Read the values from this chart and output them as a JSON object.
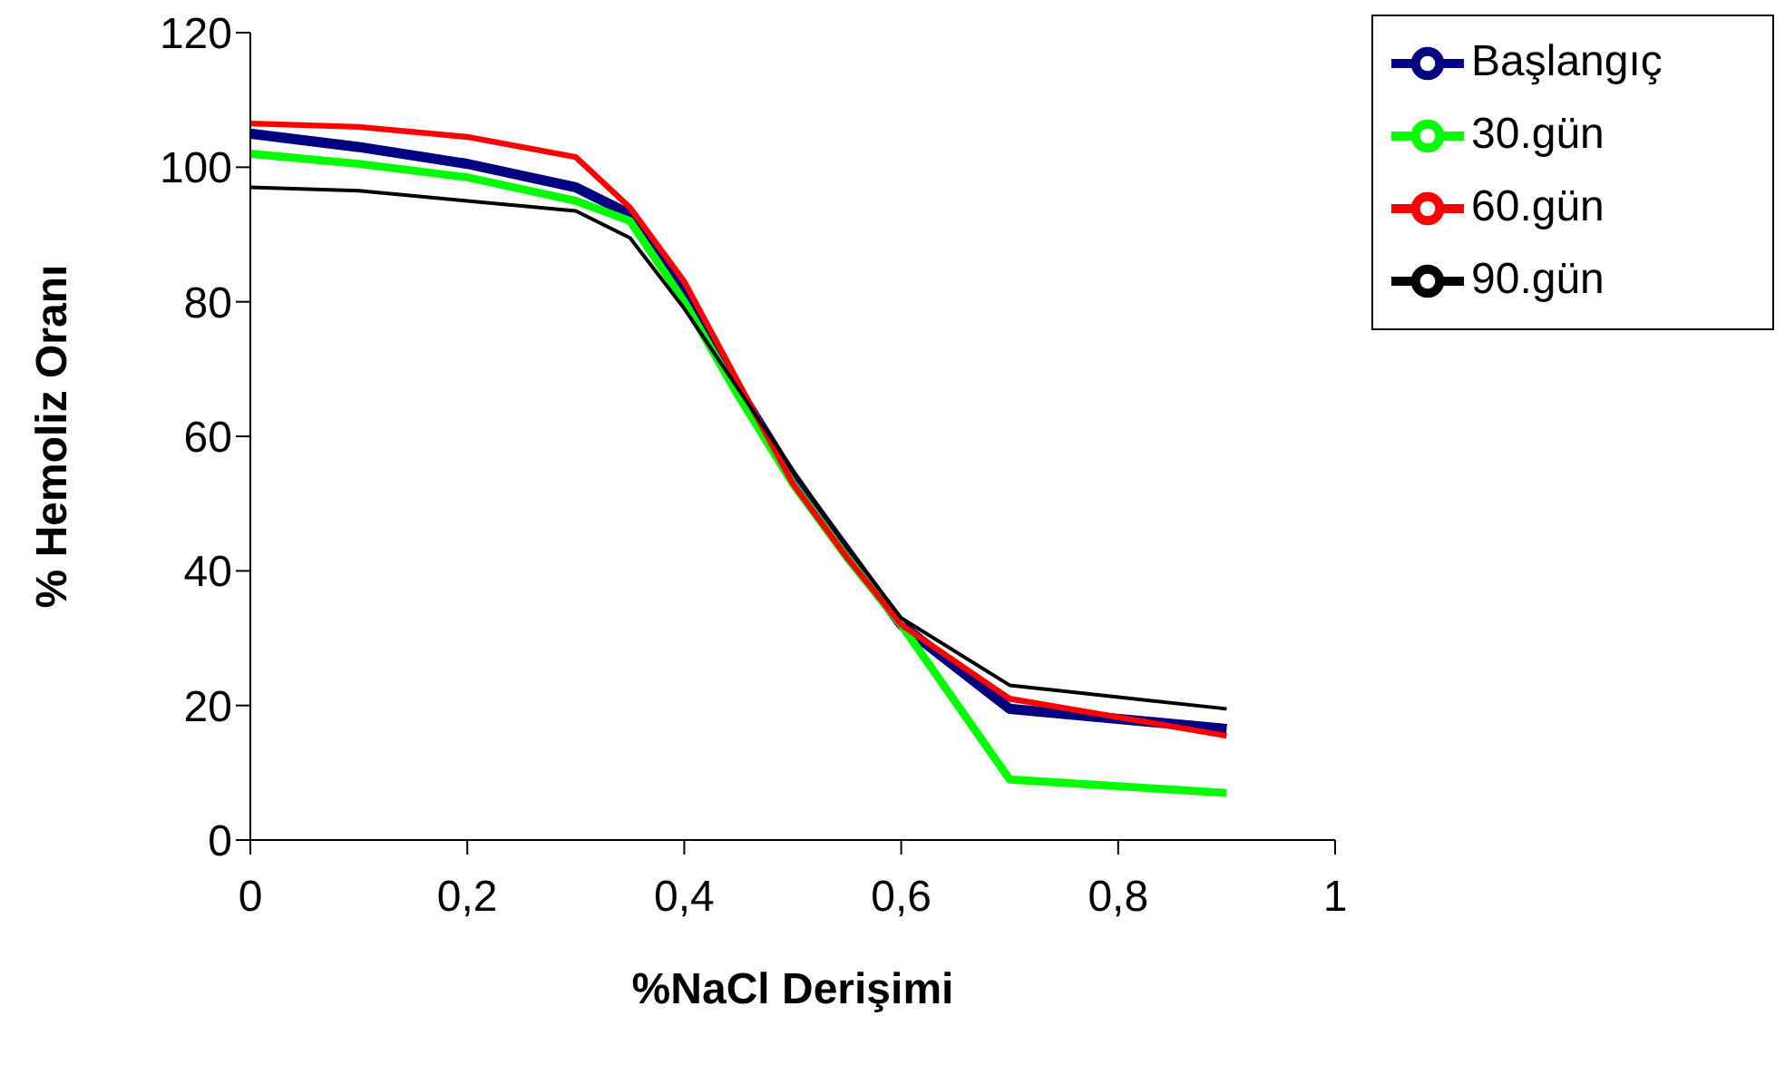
{
  "chart_data": {
    "type": "line",
    "xlabel": "%NaCl Derişimi",
    "ylabel": "% Hemoliz Oranı",
    "x": [
      0,
      0.1,
      0.2,
      0.3,
      0.35,
      0.4,
      0.45,
      0.5,
      0.55,
      0.6,
      0.7,
      0.9
    ],
    "series": [
      {
        "name": "Başlangıç",
        "color": "#000080",
        "values": [
          105,
          103,
          100.5,
          97,
          93,
          81,
          67,
          54,
          43,
          32,
          19.5,
          16.5
        ]
      },
      {
        "name": "30.gün",
        "color": "#00ff00",
        "values": [
          102,
          100.5,
          98.5,
          95,
          92,
          80,
          66,
          53,
          42,
          32,
          9,
          7
        ]
      },
      {
        "name": "60.gün",
        "color": "#ff0000",
        "values": [
          106.5,
          106,
          104.5,
          101.5,
          94,
          83,
          68,
          53,
          42,
          32,
          21,
          15.5
        ]
      },
      {
        "name": "90.gün",
        "color": "#000000",
        "values": [
          97,
          96.5,
          95,
          93.5,
          89.5,
          79,
          67,
          55,
          43.5,
          33,
          23,
          19.5
        ]
      }
    ],
    "xlim": [
      0,
      1
    ],
    "xticks": [
      0,
      {
        "value": 0.2,
        "label": "0,2"
      },
      {
        "value": 0.4,
        "label": "0,4"
      },
      {
        "value": 0.6,
        "label": "0,6"
      },
      {
        "value": 0.8,
        "label": "0,8"
      },
      1
    ],
    "ylim": [
      0,
      120
    ],
    "yticks": [
      0,
      20,
      40,
      60,
      80,
      100,
      120
    ],
    "legend": "top right",
    "marker": "none",
    "line_style": "solid",
    "grid": false
  }
}
